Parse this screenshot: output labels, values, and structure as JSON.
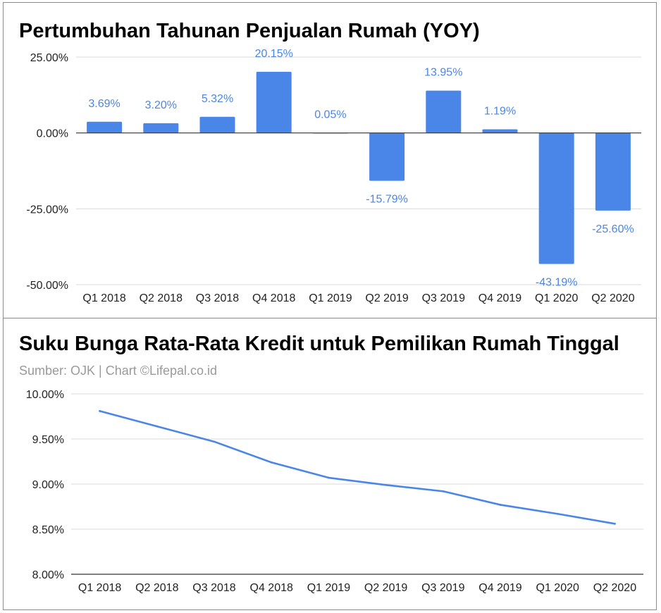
{
  "chart_data": [
    {
      "type": "bar",
      "title": "Pertumbuhan Tahunan Penjualan Rumah (YOY)",
      "categories": [
        "Q1 2018",
        "Q2 2018",
        "Q3 2018",
        "Q4 2018",
        "Q1 2019",
        "Q2 2019",
        "Q3 2019",
        "Q4 2019",
        "Q1 2020",
        "Q2 2020"
      ],
      "values": [
        3.69,
        3.2,
        5.32,
        20.15,
        0.05,
        -15.79,
        13.95,
        1.19,
        -43.19,
        -25.6
      ],
      "data_labels": [
        "3.69%",
        "3.20%",
        "5.32%",
        "20.15%",
        "0.05%",
        "-15.79%",
        "13.95%",
        "1.19%",
        "-43.19%",
        "-25.60%"
      ],
      "y_ticks": [
        25,
        0,
        -25,
        -50
      ],
      "y_tick_labels": [
        "25.00%",
        "0.00%",
        "-25.00%",
        "-50.00%"
      ],
      "ylim": [
        -50,
        25
      ],
      "grid": true,
      "legend": "none",
      "color": "#4a86e8"
    },
    {
      "type": "line",
      "title": "Suku Bunga Rata-Rata Kredit untuk Pemilikan Rumah Tinggal",
      "subtitle": "Sumber: OJK | Chart ©Lifepal.co.id",
      "categories": [
        "Q1 2018",
        "Q2 2018",
        "Q3 2018",
        "Q4 2018",
        "Q1 2019",
        "Q2 2019",
        "Q3 2019",
        "Q4 2019",
        "Q1 2020",
        "Q2 2020"
      ],
      "values": [
        9.81,
        9.64,
        9.47,
        9.24,
        9.07,
        8.99,
        8.92,
        8.77,
        8.67,
        8.56
      ],
      "y_ticks": [
        10,
        9.5,
        9,
        8.5,
        8
      ],
      "y_tick_labels": [
        "10.00%",
        "9.50%",
        "9.00%",
        "8.50%",
        "8.00%"
      ],
      "ylim": [
        8,
        10
      ],
      "grid": true,
      "legend": "none",
      "color": "#4a86e8"
    }
  ]
}
